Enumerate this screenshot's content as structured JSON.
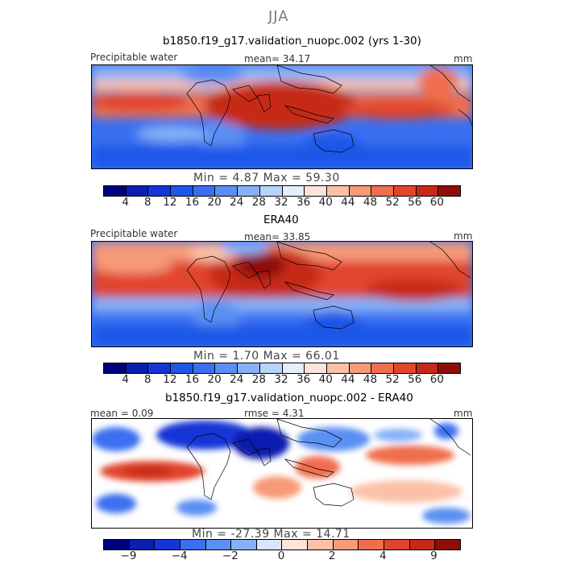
{
  "figure_title": "JJA",
  "chart_data": [
    {
      "type": "heatmap",
      "title": "b1850.f19_g17.validation_nuopc.002 (yrs 1-30)",
      "left_label": "Precipitable water",
      "center_label": "mean=  34.17",
      "units": "mm",
      "min_label": "Min =   4.87 Max =  59.30",
      "colorbar_ticks": [
        "4",
        "8",
        "12",
        "16",
        "20",
        "24",
        "28",
        "32",
        "36",
        "40",
        "44",
        "48",
        "52",
        "56",
        "60"
      ],
      "colors": [
        "#00007f",
        "#0a1fb0",
        "#1536d6",
        "#1f56e8",
        "#3a6ff0",
        "#5a8ff3",
        "#86b1f7",
        "#b9d3fa",
        "#e6eefd",
        "#fde3d8",
        "#fbc1a8",
        "#f69a78",
        "#ef6e4e",
        "#e1452f",
        "#c62919",
        "#8f0f08"
      ]
    },
    {
      "type": "heatmap",
      "title": "ERA40",
      "left_label": "Precipitable water",
      "center_label": "mean=  33.85",
      "units": "mm",
      "min_label": "Min =   1.70 Max =  66.01",
      "colorbar_ticks": [
        "4",
        "8",
        "12",
        "16",
        "20",
        "24",
        "28",
        "32",
        "36",
        "40",
        "44",
        "48",
        "52",
        "56",
        "60"
      ],
      "colors": [
        "#00007f",
        "#0a1fb0",
        "#1536d6",
        "#1f56e8",
        "#3a6ff0",
        "#5a8ff3",
        "#86b1f7",
        "#b9d3fa",
        "#e6eefd",
        "#fde3d8",
        "#fbc1a8",
        "#f69a78",
        "#ef6e4e",
        "#e1452f",
        "#c62919",
        "#8f0f08"
      ]
    },
    {
      "type": "heatmap",
      "title": "b1850.f19_g17.validation_nuopc.002 - ERA40",
      "left_label": "mean =  0.09",
      "center_label": "rmse =   4.31",
      "units": "mm",
      "min_label": "Min = -27.39 Max =  14.71",
      "colorbar_ticks": [
        "-9",
        "",
        "-4",
        "",
        "-2",
        "",
        "0",
        "",
        "2",
        "",
        "4",
        "",
        "9"
      ],
      "colors": [
        "#00007f",
        "#0a1fb0",
        "#1536d6",
        "#3a6ff0",
        "#5a8ff3",
        "#86b1f7",
        "#d7e6fc",
        "#fde3d8",
        "#fbc1a8",
        "#f69a78",
        "#ef6e4e",
        "#e1452f",
        "#c62919",
        "#8f0f08"
      ]
    }
  ]
}
